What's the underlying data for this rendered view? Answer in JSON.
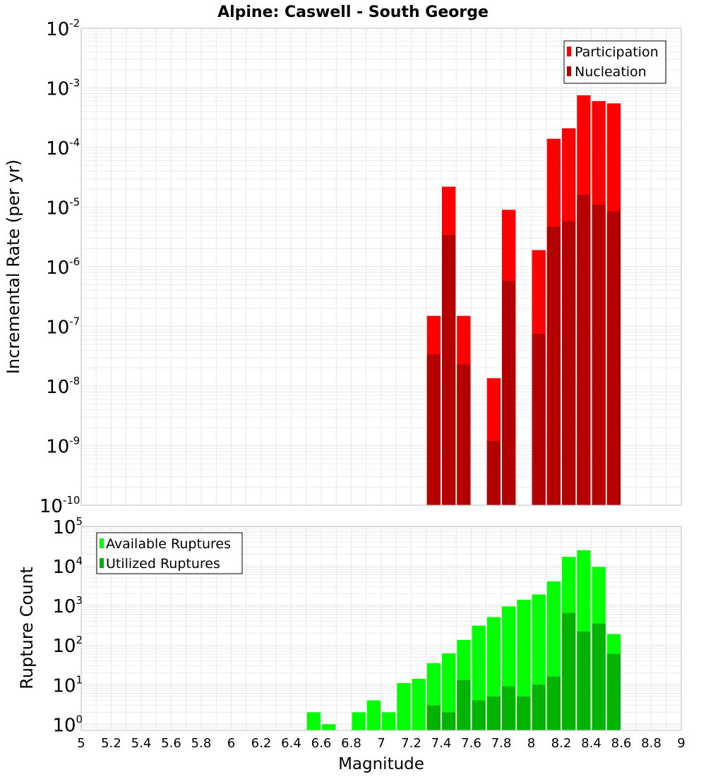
{
  "title": "Alpine: Caswell - South George",
  "colors": {
    "participation": "#ff0000",
    "nucleation": "#b30000",
    "available": "#00ff00",
    "utilized": "#00b300",
    "grid": "#e8e8e8",
    "frame": "#bdbdbd"
  },
  "chart_data": [
    {
      "type": "bar",
      "ylabel": "Incremental Rate (per yr)",
      "xlim": [
        5,
        9
      ],
      "ylim": [
        1e-10,
        0.01
      ],
      "yscale": "log",
      "grid": true,
      "legend_placement": "top-right",
      "y_tick_exponents": [
        "-10",
        "-9",
        "-8",
        "-7",
        "-6",
        "-5",
        "-4",
        "-3",
        "-2"
      ],
      "series": [
        {
          "name": "Participation",
          "x": [
            7.35,
            7.45,
            7.55,
            7.75,
            7.85,
            8.05,
            8.15,
            8.25,
            8.35,
            8.45,
            8.55
          ],
          "values": [
            1.5e-07,
            2.2e-05,
            1.5e-07,
            1.35e-08,
            9e-06,
            1.9e-06,
            0.00014,
            0.00021,
            0.00075,
            0.0006,
            0.00055
          ]
        },
        {
          "name": "Nucleation",
          "x": [
            7.35,
            7.45,
            7.55,
            7.75,
            7.85,
            8.05,
            8.15,
            8.25,
            8.35,
            8.45,
            8.55
          ],
          "values": [
            3.4e-08,
            3.4e-06,
            2.3e-08,
            1.2e-09,
            5.8e-07,
            7.5e-08,
            4.7e-06,
            5.8e-06,
            1.6e-05,
            1.1e-05,
            8.5e-06
          ]
        }
      ]
    },
    {
      "type": "bar",
      "xlabel": "Magnitude",
      "ylabel": "Rupture Count",
      "xlim": [
        5,
        9
      ],
      "ylim": [
        0.7,
        100000.0
      ],
      "yscale": "log",
      "grid": true,
      "legend_placement": "top-left",
      "y_tick_exponents": [
        "0",
        "1",
        "2",
        "3",
        "4",
        "5"
      ],
      "x_ticks": [
        "5",
        "5.2",
        "5.4",
        "5.6",
        "5.8",
        "6",
        "6.2",
        "6.4",
        "6.6",
        "6.8",
        "7",
        "7.2",
        "7.4",
        "7.6",
        "7.8",
        "8",
        "8.2",
        "8.4",
        "8.6",
        "8.8",
        "9"
      ],
      "series": [
        {
          "name": "Available Ruptures",
          "x": [
            6.55,
            6.65,
            6.85,
            6.95,
            7.05,
            7.15,
            7.25,
            7.35,
            7.45,
            7.55,
            7.65,
            7.75,
            7.85,
            7.95,
            8.05,
            8.15,
            8.25,
            8.35,
            8.45,
            8.55
          ],
          "values": [
            2,
            1,
            2,
            4,
            2,
            11,
            14,
            35,
            62,
            135,
            310,
            510,
            950,
            1400,
            1900,
            4100,
            17000,
            25000,
            9500,
            190
          ]
        },
        {
          "name": "Utilized Ruptures",
          "x": [
            7.35,
            7.45,
            7.55,
            7.65,
            7.75,
            7.85,
            7.95,
            8.05,
            8.15,
            8.25,
            8.35,
            8.45,
            8.55
          ],
          "values": [
            3,
            2,
            13,
            4,
            5,
            9,
            5,
            10,
            16,
            650,
            220,
            350,
            60
          ]
        }
      ]
    }
  ]
}
